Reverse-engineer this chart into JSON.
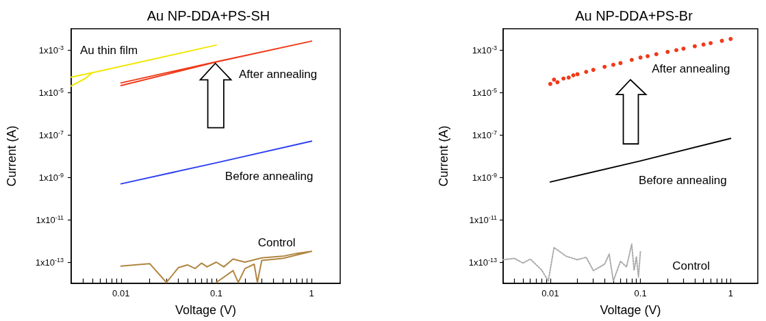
{
  "chart_data": [
    {
      "type": "line",
      "title": "Au NP-DDA+PS-SH",
      "xlabel": "Voltage (V)",
      "ylabel": "Current (A)",
      "log": "xy",
      "xlim": [
        0.003,
        2
      ],
      "ylim": [
        1e-14,
        0.01
      ],
      "xticks": [
        {
          "value": 0.004,
          "label": null
        },
        {
          "value": 0.005,
          "label": null
        },
        {
          "value": 0.006,
          "label": null
        },
        {
          "value": 0.007,
          "label": null
        },
        {
          "value": 0.008,
          "label": null
        },
        {
          "value": 0.009,
          "label": null
        },
        0.01,
        {
          "value": 0.02,
          "label": null
        },
        {
          "value": 0.03,
          "label": null
        },
        {
          "value": 0.04,
          "label": null
        },
        {
          "value": 0.05,
          "label": null
        },
        {
          "value": 0.06,
          "label": null
        },
        {
          "value": 0.07,
          "label": null
        },
        {
          "value": 0.08,
          "label": null
        },
        {
          "value": 0.09,
          "label": null
        },
        0.1,
        {
          "value": 0.2,
          "label": null
        },
        {
          "value": 0.3,
          "label": null
        },
        {
          "value": 0.4,
          "label": null
        },
        {
          "value": 0.5,
          "label": null
        },
        {
          "value": 0.6,
          "label": null
        },
        {
          "value": 0.7,
          "label": null
        },
        {
          "value": 0.8,
          "label": null
        },
        {
          "value": 0.9,
          "label": null
        },
        1
      ],
      "yticks": [
        {
          "value": 1e-13,
          "label": "1x10$^{-13}$"
        },
        {
          "value": 1e-11,
          "label": "1x10$^{-11}$"
        },
        {
          "value": 1e-09,
          "label": "1x10$^{-9}$"
        },
        {
          "value": 1e-07,
          "label": "1x10$^{-7}$"
        },
        {
          "value": 1e-05,
          "label": "1x10$^{-5}$"
        },
        {
          "value": 0.001,
          "label": "1x10$^{-3}$"
        }
      ],
      "series": [
        {
          "name": "Au thin film",
          "color": "#f2e600",
          "x": [
            0.003,
            0.0042,
            0.005,
            0.1,
            0.005,
            0.003
          ],
          "values": [
            2e-05,
            4.5e-05,
            8.5e-05,
            0.0017,
            8.5e-05,
            5.2e-05
          ]
        },
        {
          "name": "After annealing",
          "color": "#f03a1a",
          "x": [
            0.01,
            0.1,
            1,
            0.1,
            0.01
          ],
          "values": [
            2.1e-05,
            0.00027,
            0.0026,
            0.00028,
            2.8e-05
          ]
        },
        {
          "name": "Before annealing",
          "color": "#2a3ef0",
          "x": [
            0.01,
            0.1,
            1
          ],
          "values": [
            4.9e-10,
            4.8e-09,
            5e-08
          ]
        },
        {
          "name": "Control",
          "color": "#b08540",
          "x": [
            0.01,
            0.02,
            0.03,
            0.04,
            0.05,
            0.06,
            0.07,
            0.08,
            0.1,
            0.12,
            0.15,
            0.2,
            0.3,
            0.5,
            0.7,
            1,
            0.5,
            0.3,
            0.27,
            0.25,
            0.2,
            0.17,
            0.15,
            0.1
          ],
          "values": [
            6.5e-14,
            8.5e-14,
            1.1e-14,
            5.5e-14,
            7.4e-14,
            5e-14,
            9e-14,
            6e-14,
            1e-13,
            6e-14,
            1.4e-13,
            1e-13,
            1.6e-13,
            1.9e-13,
            2.6e-13,
            3.2e-13,
            1.5e-13,
            1.2e-13,
            1.1e-14,
            8e-14,
            5e-14,
            1.1e-14,
            4e-14,
            1.1e-14
          ]
        }
      ]
    },
    {
      "type": "line",
      "title": "Au NP-DDA+PS-Br",
      "xlabel": "Voltage (V)",
      "ylabel": "Current (A)",
      "log": "xy",
      "xlim": [
        0.003,
        2
      ],
      "ylim": [
        1e-14,
        0.01
      ],
      "xticks": [
        {
          "value": 0.004,
          "label": null
        },
        {
          "value": 0.005,
          "label": null
        },
        {
          "value": 0.006,
          "label": null
        },
        {
          "value": 0.007,
          "label": null
        },
        {
          "value": 0.008,
          "label": null
        },
        {
          "value": 0.009,
          "label": null
        },
        0.01,
        {
          "value": 0.02,
          "label": null
        },
        {
          "value": 0.03,
          "label": null
        },
        {
          "value": 0.04,
          "label": null
        },
        {
          "value": 0.05,
          "label": null
        },
        {
          "value": 0.06,
          "label": null
        },
        {
          "value": 0.07,
          "label": null
        },
        {
          "value": 0.08,
          "label": null
        },
        {
          "value": 0.09,
          "label": null
        },
        0.1,
        {
          "value": 0.2,
          "label": null
        },
        {
          "value": 0.3,
          "label": null
        },
        {
          "value": 0.4,
          "label": null
        },
        {
          "value": 0.5,
          "label": null
        },
        {
          "value": 0.6,
          "label": null
        },
        {
          "value": 0.7,
          "label": null
        },
        {
          "value": 0.8,
          "label": null
        },
        {
          "value": 0.9,
          "label": null
        },
        1
      ],
      "yticks": [
        {
          "value": 1e-13,
          "label": "1x10$^{-13}$"
        },
        {
          "value": 1e-11,
          "label": "1x10$^{-11}$"
        },
        {
          "value": 1e-09,
          "label": "1x10$^{-9}$"
        },
        {
          "value": 1e-07,
          "label": "1x10$^{-7}$"
        },
        {
          "value": 1e-05,
          "label": "1x10$^{-5}$"
        },
        {
          "value": 0.001,
          "label": "1x10$^{-3}$"
        }
      ],
      "series": [
        {
          "name": "After annealing",
          "color": "#f03a1a",
          "type": "scatter",
          "marker": "circle",
          "x": [
            0.01,
            0.011,
            0.012,
            0.014,
            0.016,
            0.018,
            0.02,
            0.025,
            0.03,
            0.04,
            0.05,
            0.06,
            0.08,
            0.1,
            0.12,
            0.15,
            0.2,
            0.25,
            0.3,
            0.4,
            0.5,
            0.6,
            0.8,
            1
          ],
          "values": [
            2.5e-05,
            4e-05,
            3e-05,
            4.5e-05,
            5e-05,
            6.4e-05,
            7.2e-05,
            9.3e-05,
            0.000115,
            0.00016,
            0.0002,
            0.00024,
            0.00034,
            0.00044,
            0.00051,
            0.00063,
            0.00081,
            0.00098,
            0.00115,
            0.0015,
            0.0018,
            0.0021,
            0.0027,
            0.0033
          ]
        },
        {
          "name": "Before annealing",
          "color": "#000000",
          "x": [
            0.01,
            0.1,
            1
          ],
          "values": [
            6e-10,
            5.9e-09,
            6.8e-08
          ]
        },
        {
          "name": "Control",
          "color": "#aaaaaa",
          "line_style": "dotted",
          "x": [
            0.003,
            0.004,
            0.005,
            0.006,
            0.008,
            0.0095,
            0.011,
            0.015,
            0.02,
            0.025,
            0.03,
            0.04,
            0.045,
            0.05,
            0.06,
            0.07,
            0.08,
            0.085,
            0.09,
            0.095,
            0.1
          ],
          "values": [
            1.3e-13,
            1.5e-13,
            9e-14,
            1.4e-13,
            4.3e-14,
            1.3e-14,
            4.9e-13,
            1.9e-13,
            1.3e-13,
            1.7e-13,
            4e-14,
            8e-14,
            2.4e-13,
            1.3e-14,
            1.1e-13,
            6e-14,
            7e-13,
            4e-14,
            1.8e-13,
            2e-14,
            3.4e-13
          ]
        }
      ]
    }
  ]
}
